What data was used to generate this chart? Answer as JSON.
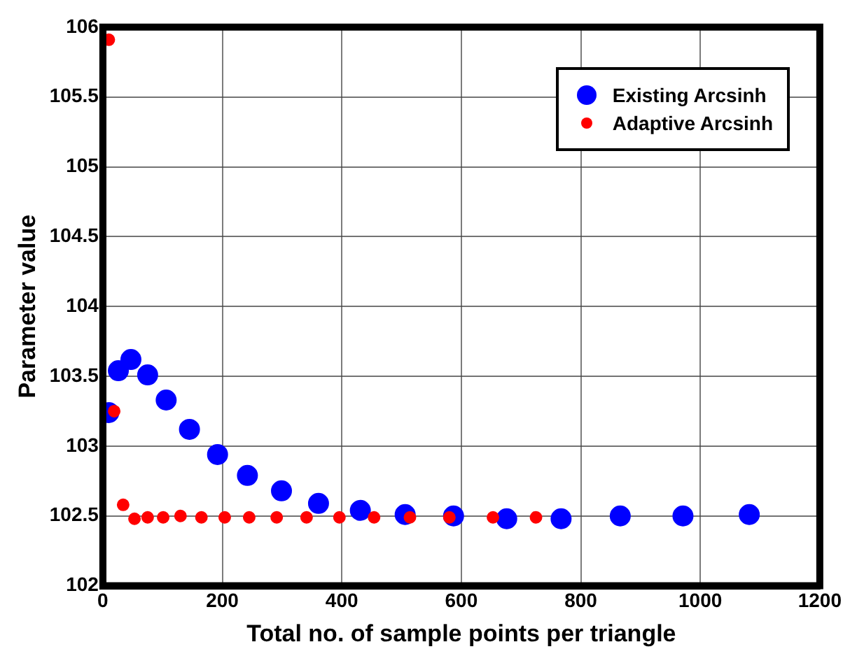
{
  "chart_data": {
    "type": "scatter",
    "xlabel": "Total no. of sample points per triangle",
    "ylabel": "Parameter value",
    "xlim": [
      0,
      1200
    ],
    "xticks": [
      0,
      200,
      400,
      600,
      800,
      1000,
      1200
    ],
    "ylim": [
      102,
      106
    ],
    "yticks": [
      102,
      102.5,
      103,
      103.5,
      104,
      104.5,
      105,
      105.5,
      106
    ],
    "grid": true,
    "legend": "top right",
    "series": [
      {
        "name": "Existing Arcsinh",
        "color": "#0000ff",
        "marker": "circle",
        "x": [
          10,
          26,
          47,
          75,
          106,
          145,
          192,
          242,
          299,
          361,
          431,
          506,
          587,
          676,
          767,
          866,
          971,
          1082
        ],
        "values": [
          103.24,
          103.54,
          103.62,
          103.51,
          103.33,
          103.12,
          102.94,
          102.79,
          102.68,
          102.59,
          102.54,
          102.51,
          102.5,
          102.48,
          102.48,
          102.5,
          102.5,
          102.51
        ]
      },
      {
        "name": "Adaptive Arcsinh",
        "color": "#ff0000",
        "marker": "circle",
        "x": [
          10,
          19,
          34,
          53,
          75,
          101,
          130,
          165,
          204,
          245,
          291,
          341,
          396,
          454,
          514,
          580,
          653,
          725
        ],
        "values": [
          105.91,
          103.25,
          102.58,
          102.48,
          102.49,
          102.49,
          102.5,
          102.49,
          102.49,
          102.49,
          102.49,
          102.49,
          102.49,
          102.49,
          102.49,
          102.49,
          102.49,
          102.49
        ]
      }
    ]
  }
}
